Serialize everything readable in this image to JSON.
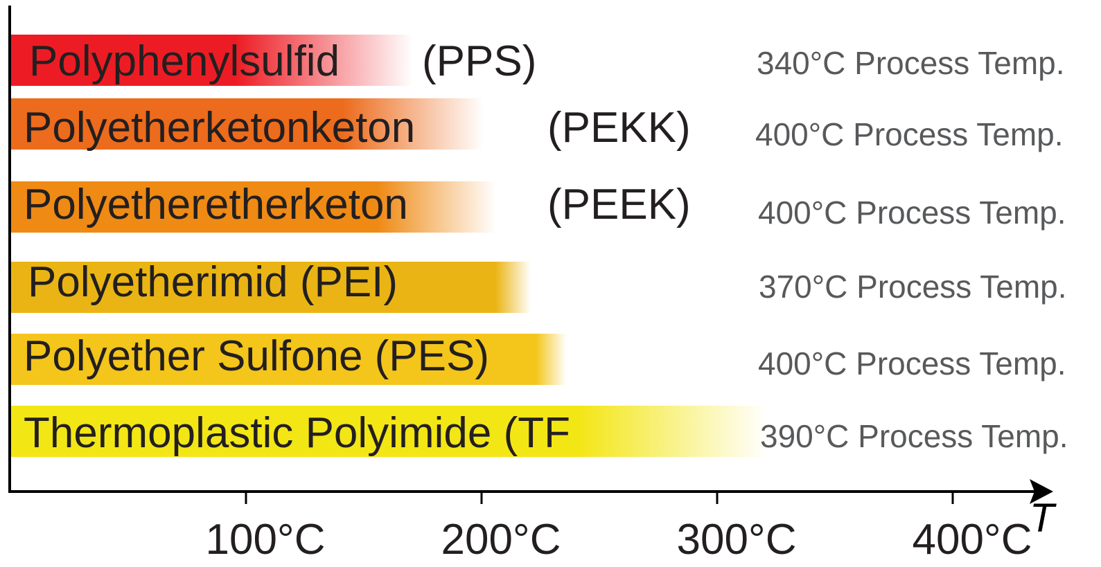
{
  "chart_data": {
    "type": "bar",
    "orientation": "horizontal",
    "title": "",
    "xlabel": "T",
    "ylabel": "",
    "x_unit": "°C",
    "xlim": [
      0,
      440
    ],
    "x_ticks": [
      100,
      200,
      300,
      400
    ],
    "x_tick_labels": [
      "100°C",
      "200°C",
      "300°C",
      "400°C"
    ],
    "grid": false,
    "legend": "none",
    "series": [
      {
        "values": [
          170,
          200,
          205,
          220,
          235,
          320
        ]
      }
    ],
    "bars": [
      {
        "label": "Polyphenylsulfid",
        "abbreviation": "(PPS)",
        "solid_until": 95,
        "fade_end": 170,
        "value": 170,
        "process_temp_text": "340°C Process Temp.",
        "color": "#ed1c24"
      },
      {
        "label": "Polyetherketonketon",
        "abbreviation": "(PEKK)",
        "solid_until": 140,
        "fade_end": 200,
        "value": 200,
        "process_temp_text": "400°C Process Temp.",
        "color": "#ec6b1c"
      },
      {
        "label": "Polyetheretherketon",
        "abbreviation": "(PEEK)",
        "solid_until": 155,
        "fade_end": 205,
        "value": 205,
        "process_temp_text": "400°C Process Temp.",
        "color": "#ef8a14"
      },
      {
        "label": "Polyetherimid (PEI)",
        "abbreviation": "",
        "solid_until": 205,
        "fade_end": 220,
        "value": 220,
        "process_temp_text": "370°C Process Temp.",
        "color": "#eab514"
      },
      {
        "label": "Polyether Sulfone (PES)",
        "abbreviation": "",
        "solid_until": 222,
        "fade_end": 235,
        "value": 235,
        "process_temp_text": "400°C Process Temp.",
        "color": "#f4c51a"
      },
      {
        "label": "Thermoplastic Polyimide (TF",
        "abbreviation": "",
        "solid_until": 240,
        "fade_end": 320,
        "value": 320,
        "process_temp_text": "390°C Process Temp.",
        "color": "#f3e615"
      }
    ]
  }
}
